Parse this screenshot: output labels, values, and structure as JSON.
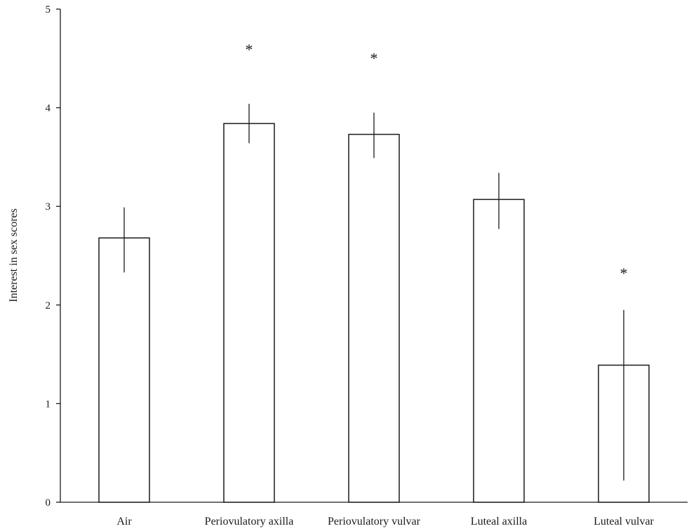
{
  "chart_data": {
    "type": "bar",
    "categories": [
      "Air",
      "Periovulatory axilla",
      "Periovulatory vulvar",
      "Luteal axilla",
      "Luteal vulvar"
    ],
    "values": [
      2.68,
      3.84,
      3.73,
      3.07,
      1.39
    ],
    "errors": [
      [
        2.33,
        2.99
      ],
      [
        3.64,
        4.04
      ],
      [
        3.49,
        3.95
      ],
      [
        2.77,
        3.34
      ],
      [
        0.22,
        1.95
      ]
    ],
    "significance": [
      "",
      "*",
      "*",
      "",
      "*"
    ],
    "ylabel": "Interest in sex scores",
    "xlabel": "",
    "ylim": [
      0,
      5
    ],
    "yticks": [
      0,
      1,
      2,
      3,
      4,
      5
    ],
    "grid": false,
    "colors": {
      "bar_fill": "#ffffff",
      "stroke": "#1a1a1a"
    }
  }
}
